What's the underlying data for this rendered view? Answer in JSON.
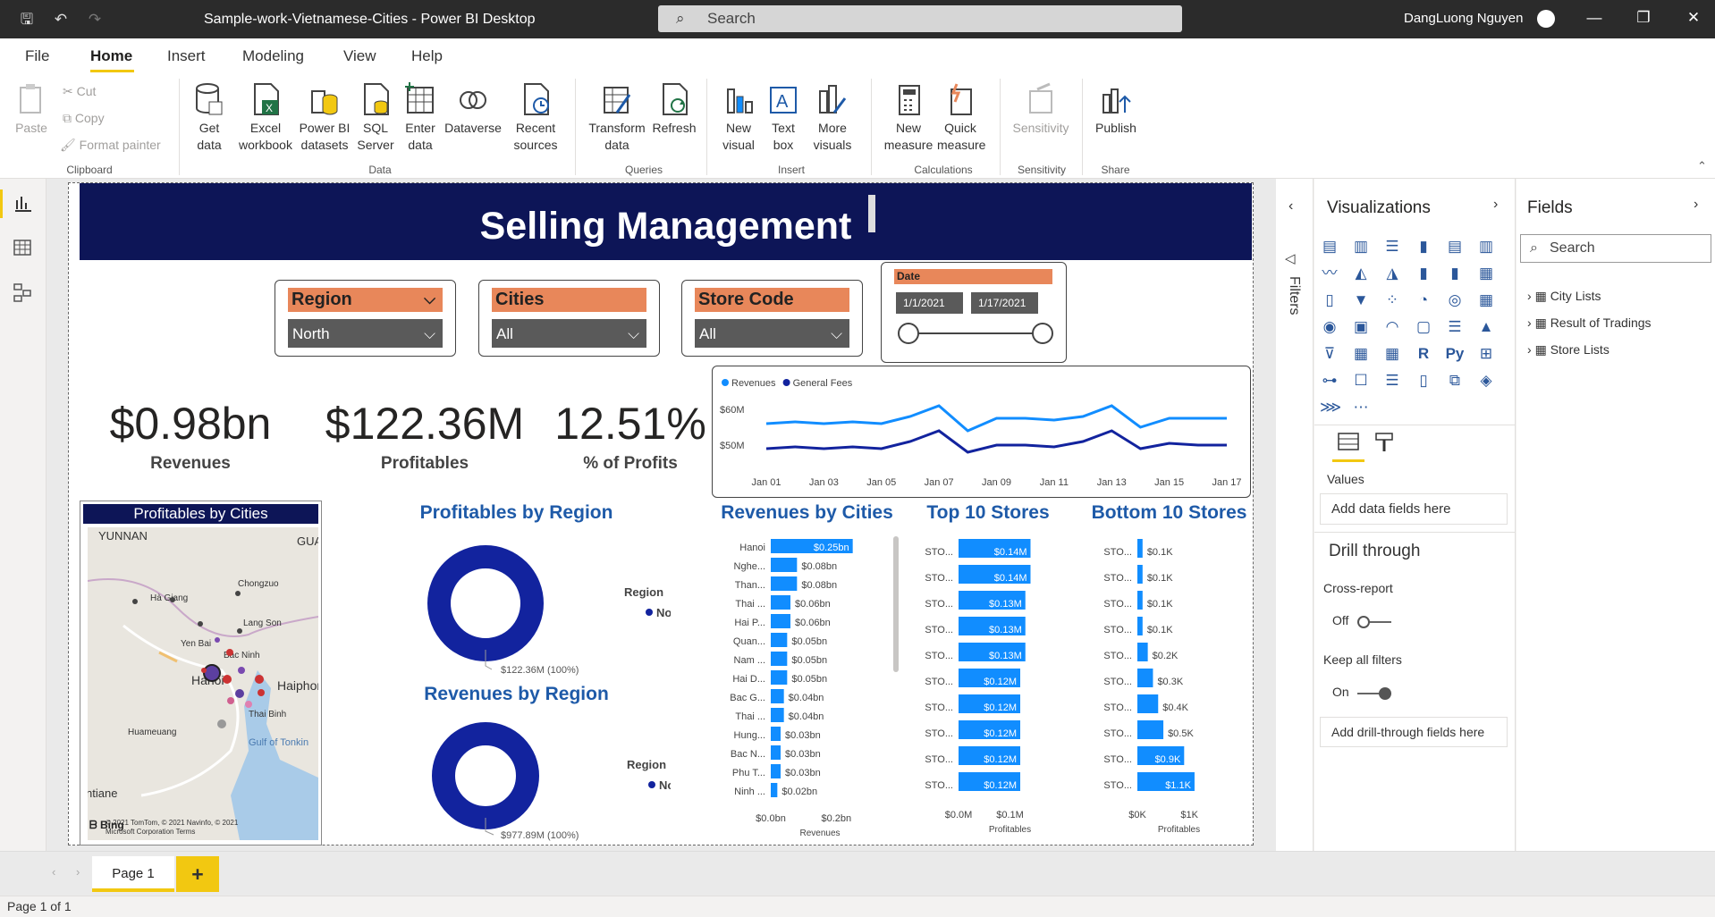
{
  "window": {
    "title": "Sample-work-Vietnamese-Cities - Power BI Desktop",
    "search_placeholder": "Search",
    "user": "DangLuong Nguyen"
  },
  "menu": [
    "File",
    "Home",
    "Insert",
    "Modeling",
    "View",
    "Help"
  ],
  "ribbon": {
    "paste": "Paste",
    "cut": "Cut",
    "copy": "Copy",
    "format_painter": "Format painter",
    "get_data": "Get data",
    "excel": "Excel workbook",
    "pbi_datasets": "Power BI datasets",
    "sql": "SQL Server",
    "enter_data": "Enter data",
    "dataverse": "Dataverse",
    "recent": "Recent sources",
    "transform": "Transform data",
    "refresh": "Refresh",
    "new_visual": "New visual",
    "text_box": "Text box",
    "more_visuals": "More visuals",
    "new_measure": "New measure",
    "quick_measure": "Quick measure",
    "sensitivity": "Sensitivity",
    "publish": "Publish",
    "groups": {
      "clipboard": "Clipboard",
      "data": "Data",
      "queries": "Queries",
      "insert": "Insert",
      "calculations": "Calculations",
      "sensitivity": "Sensitivity",
      "share": "Share"
    }
  },
  "report": {
    "banner": "Selling Management",
    "slicers": {
      "region": {
        "label": "Region",
        "value": "North"
      },
      "cities": {
        "label": "Cities",
        "value": "All"
      },
      "store": {
        "label": "Store Code",
        "value": "All"
      },
      "date": {
        "label": "Date",
        "start": "1/1/2021",
        "end": "1/17/2021"
      }
    },
    "kpis": [
      {
        "value": "$0.98bn",
        "label": "Revenues"
      },
      {
        "value": "$122.36M",
        "label": "Profitables"
      },
      {
        "value": "12.51%",
        "label": "% of Profits"
      }
    ],
    "map": {
      "title": "Profitables by Cities",
      "places": [
        "YUNNAN",
        "GUA",
        "Hà Giang",
        "Chongzuo",
        "Lang Son",
        "Yen Bai",
        "Bac Ninh",
        "Hanoi",
        "Haiphong",
        "Thai Binh",
        "Huameuang",
        "Gulf of Tonkin",
        "ntiane"
      ],
      "credit": "© 2021 TomTom, © 2021 Navinfo, © 2021 Microsoft Corporation",
      "terms": "Terms",
      "bing": "Bing"
    },
    "donuts": [
      {
        "title": "Profitables by Region",
        "legend_title": "Region",
        "legend": "North",
        "label": "$122.36M (100%)"
      },
      {
        "title": "Revenues by Region",
        "legend_title": "Region",
        "legend": "North",
        "label": "$977.89M (100%)"
      }
    ]
  },
  "chart_data": [
    {
      "type": "line",
      "title": "",
      "x": [
        "Jan 01",
        "Jan 02",
        "Jan 03",
        "Jan 04",
        "Jan 05",
        "Jan 06",
        "Jan 07",
        "Jan 08",
        "Jan 09",
        "Jan 10",
        "Jan 11",
        "Jan 12",
        "Jan 13",
        "Jan 14",
        "Jan 15",
        "Jan 16",
        "Jan 17"
      ],
      "x_ticks": [
        "Jan 01",
        "Jan 03",
        "Jan 05",
        "Jan 07",
        "Jan 09",
        "Jan 11",
        "Jan 13",
        "Jan 15",
        "Jan 17"
      ],
      "y_ticks": [
        "$60M",
        "$50M"
      ],
      "ylim": [
        45,
        65
      ],
      "series": [
        {
          "name": "Revenues",
          "color": "#118dff",
          "values": [
            56,
            56.5,
            56,
            56.5,
            56,
            58,
            61,
            54,
            57.5,
            57.5,
            57,
            58,
            61,
            55,
            57.5,
            57.5,
            57.5
          ]
        },
        {
          "name": "General Fees",
          "color": "#12239e",
          "values": [
            49,
            49.5,
            49,
            49.5,
            49,
            51,
            54,
            48,
            50,
            50,
            49.5,
            51,
            54,
            49,
            50.5,
            50,
            50
          ]
        }
      ],
      "legend": "top-left"
    },
    {
      "type": "bar",
      "title": "Revenues by Cities",
      "xlabel": "Revenues",
      "x_ticks": [
        "$0.0bn",
        "$0.2bn"
      ],
      "xlim": [
        0,
        0.3
      ],
      "categories": [
        "Hanoi",
        "Nghe...",
        "Than...",
        "Thai ...",
        "Hai P...",
        "Quan...",
        "Nam ...",
        "Hai D...",
        "Bac G...",
        "Thai ...",
        "Hung...",
        "Bac N...",
        "Phu T...",
        "Ninh ..."
      ],
      "values": [
        0.25,
        0.08,
        0.08,
        0.06,
        0.06,
        0.05,
        0.05,
        0.05,
        0.04,
        0.04,
        0.03,
        0.03,
        0.03,
        0.02
      ],
      "labels": [
        "$0.25bn",
        "$0.08bn",
        "$0.08bn",
        "$0.06bn",
        "$0.06bn",
        "$0.05bn",
        "$0.05bn",
        "$0.05bn",
        "$0.04bn",
        "$0.04bn",
        "$0.03bn",
        "$0.03bn",
        "$0.03bn",
        "$0.02bn"
      ]
    },
    {
      "type": "bar",
      "title": "Top 10 Stores",
      "xlabel": "Profitables",
      "x_ticks": [
        "$0.0M",
        "$0.1M"
      ],
      "xlim": [
        0,
        0.2
      ],
      "categories": [
        "STO...",
        "STO...",
        "STO...",
        "STO...",
        "STO...",
        "STO...",
        "STO...",
        "STO...",
        "STO...",
        "STO..."
      ],
      "values": [
        0.14,
        0.14,
        0.13,
        0.13,
        0.13,
        0.12,
        0.12,
        0.12,
        0.12,
        0.12
      ],
      "labels": [
        "$0.14M",
        "$0.14M",
        "$0.13M",
        "$0.13M",
        "$0.13M",
        "$0.12M",
        "$0.12M",
        "$0.12M",
        "$0.12M",
        "$0.12M"
      ]
    },
    {
      "type": "bar",
      "title": "Bottom 10 Stores",
      "xlabel": "Profitables",
      "x_ticks": [
        "$0K",
        "$1K"
      ],
      "xlim": [
        0,
        1.6
      ],
      "categories": [
        "STO...",
        "STO...",
        "STO...",
        "STO...",
        "STO...",
        "STO...",
        "STO...",
        "STO...",
        "STO...",
        "STO..."
      ],
      "values": [
        0.1,
        0.1,
        0.1,
        0.1,
        0.2,
        0.3,
        0.4,
        0.5,
        0.9,
        1.1
      ],
      "labels": [
        "$0.1K",
        "$0.1K",
        "$0.1K",
        "$0.1K",
        "$0.2K",
        "$0.3K",
        "$0.4K",
        "$0.5K",
        "$0.9K",
        "$1.1K"
      ]
    }
  ],
  "panes": {
    "filters": "Filters",
    "visualizations": "Visualizations",
    "fields": "Fields",
    "fields_search": "Search",
    "values": "Values",
    "add_data": "Add data fields here",
    "drill": "Drill through",
    "cross": "Cross-report",
    "off": "Off",
    "keep": "Keep all filters",
    "on": "On",
    "add_drill": "Add drill-through fields here",
    "tables": [
      "City Lists",
      "Result of Tradings",
      "Store Lists"
    ]
  },
  "page_tab": "Page 1",
  "status": "Page 1 of 1",
  "colors": {
    "accent": "#f2c811",
    "banner": "#0d1557",
    "bar": "#118dff",
    "donut": "#12239e",
    "slicer_header": "#e8875a"
  }
}
